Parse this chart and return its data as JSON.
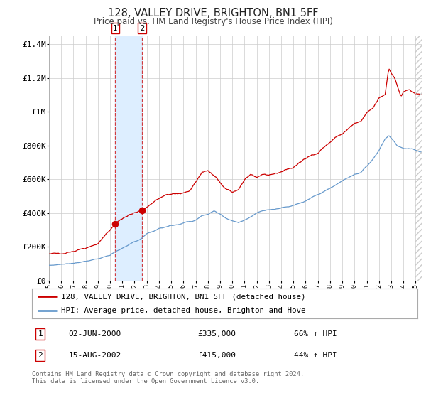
{
  "title": "128, VALLEY DRIVE, BRIGHTON, BN1 5FF",
  "subtitle": "Price paid vs. HM Land Registry's House Price Index (HPI)",
  "legend_line1": "128, VALLEY DRIVE, BRIGHTON, BN1 5FF (detached house)",
  "legend_line2": "HPI: Average price, detached house, Brighton and Hove",
  "transaction1_date": "02-JUN-2000",
  "transaction1_price": "£335,000",
  "transaction1_pct": "66% ↑ HPI",
  "transaction2_date": "15-AUG-2002",
  "transaction2_price": "£415,000",
  "transaction2_pct": "44% ↑ HPI",
  "footer": "Contains HM Land Registry data © Crown copyright and database right 2024.\nThis data is licensed under the Open Government Licence v3.0.",
  "red_color": "#cc0000",
  "blue_color": "#6699cc",
  "background_color": "#ffffff",
  "grid_color": "#cccccc",
  "highlight_color": "#ddeeff",
  "transaction1_x": 2000.42,
  "transaction2_x": 2002.62,
  "transaction1_y": 335000,
  "transaction2_y": 415000,
  "ylim": [
    0,
    1450000
  ],
  "xlim_start": 1995.0,
  "xlim_end": 2025.5
}
